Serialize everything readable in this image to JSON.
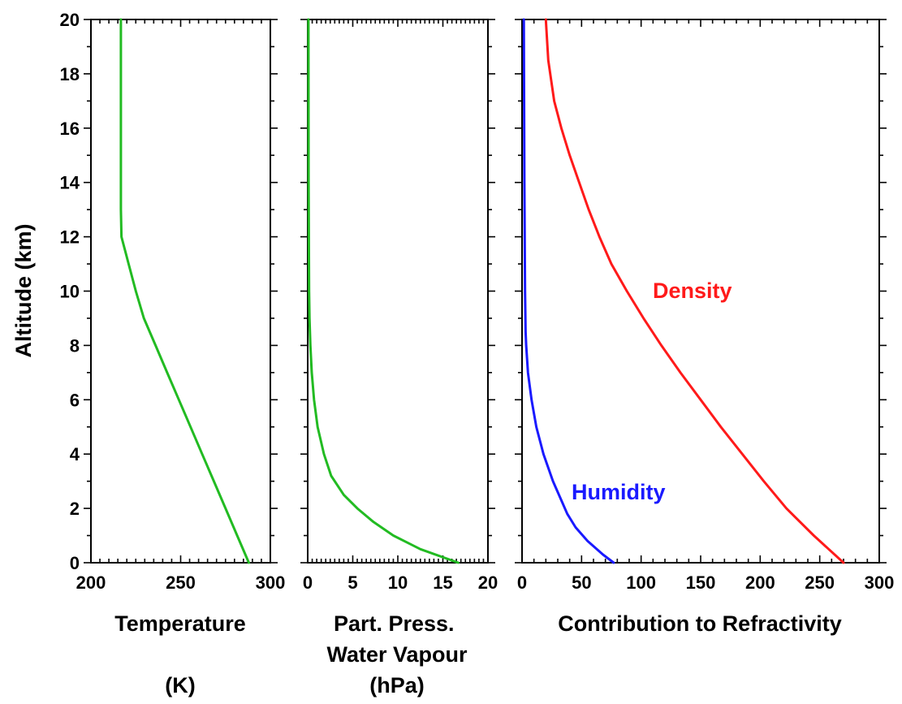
{
  "colors": {
    "temperature": "#22bb22",
    "water_vapour": "#22bb22",
    "density": "#ff1a1a",
    "humidity": "#1a1aff"
  },
  "chart_data": [
    {
      "type": "line",
      "xlabel": "Temperature",
      "xlabel_unit": "(K)",
      "ylabel": "Altitude (km)",
      "xlim": [
        200,
        300
      ],
      "ylim": [
        0,
        20
      ],
      "x_ticks": [
        "200",
        "250",
        "300"
      ],
      "y_ticks": [
        "0",
        "2",
        "4",
        "6",
        "8",
        "10",
        "12",
        "14",
        "16",
        "18",
        "20"
      ],
      "series": [
        {
          "color": "#22bb22",
          "x": [
            288,
            281.5,
            275,
            268.5,
            262,
            255.5,
            249,
            242.5,
            236,
            229.5,
            225,
            221,
            219,
            217,
            216.7,
            216.7
          ],
          "y": [
            0,
            1,
            2,
            3,
            4,
            5,
            6,
            7,
            8,
            9,
            10,
            11,
            11.5,
            12,
            13,
            20
          ]
        }
      ]
    },
    {
      "type": "line",
      "xlabel": "Part. Press.\nWater Vapour",
      "xlabel_unit": "(hPa)",
      "xlim": [
        0,
        20
      ],
      "ylim": [
        0,
        20
      ],
      "x_ticks": [
        "0",
        "5",
        "10",
        "15",
        "20"
      ],
      "series": [
        {
          "color": "#22bb22",
          "x": [
            16.7,
            12.5,
            9.5,
            7.3,
            5.5,
            4.0,
            2.6,
            1.8,
            1.1,
            0.7,
            0.45,
            0.3,
            0.2,
            0.15,
            0.1,
            0.08
          ],
          "y": [
            0,
            0.5,
            1,
            1.5,
            2,
            2.5,
            3.2,
            4,
            5,
            6,
            7,
            8,
            9,
            10,
            14,
            20
          ]
        }
      ]
    },
    {
      "type": "line",
      "xlabel": "Contribution to Refractivity",
      "xlim": [
        0,
        300
      ],
      "ylim": [
        0,
        20
      ],
      "x_ticks": [
        "0",
        "50",
        "100",
        "150",
        "200",
        "250",
        "300"
      ],
      "annotations": [
        "Density",
        "Humidity"
      ],
      "series": [
        {
          "color": "#ff1a1a",
          "x": [
            270,
            245,
            222,
            203,
            185,
            167,
            150,
            133,
            117,
            102,
            88,
            75,
            65,
            56,
            48,
            40,
            33,
            27,
            22,
            20
          ],
          "y": [
            0,
            1,
            2,
            3,
            4,
            5,
            6,
            7,
            8,
            9,
            10,
            11,
            12,
            13,
            14,
            15,
            16,
            17,
            18.5,
            20
          ]
        },
        {
          "color": "#1a1aff",
          "x": [
            77,
            68,
            55,
            45,
            38,
            33,
            26,
            18,
            12,
            8,
            5,
            3.5,
            3,
            2.5,
            2,
            1.5
          ],
          "y": [
            0,
            0.3,
            0.8,
            1.3,
            1.8,
            2.3,
            3,
            4,
            5,
            6,
            7,
            8,
            8.5,
            10,
            14,
            20
          ]
        }
      ]
    }
  ]
}
